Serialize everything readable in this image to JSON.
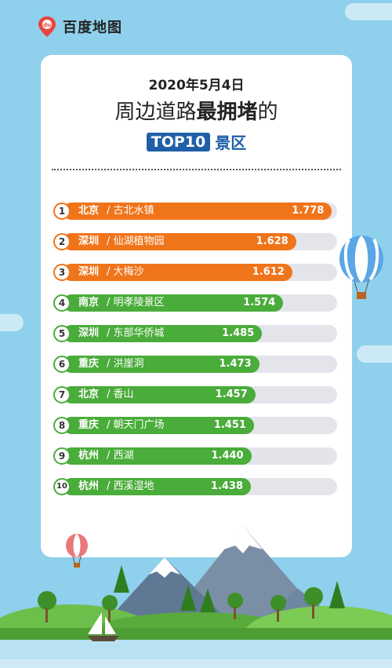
{
  "brand": {
    "name": "百度地图",
    "color": "#e8453c"
  },
  "title": {
    "date": "2020年5月4日",
    "line1_prefix": "周边道路",
    "line1_bold": "最拥堵",
    "line1_suffix": "的",
    "badge": "TOP10",
    "badge_suffix": "景区"
  },
  "colors": {
    "orange": "#f0741a",
    "green": "#4aac3a",
    "track": "#e3e5ea",
    "badge": "#1f5fa8"
  },
  "chart_data": {
    "type": "bar",
    "orientation": "horizontal",
    "categories": [
      "北京 / 古北水镇",
      "深圳 / 仙湖植物园",
      "深圳 / 大梅沙",
      "南京 / 明孝陵景区",
      "深圳 / 东部华侨城",
      "重庆 / 洪崖洞",
      "北京 / 香山",
      "重庆 / 朝天门广场",
      "杭州 / 西湖",
      "杭州 / 西溪湿地"
    ],
    "rows": [
      {
        "rank": "1",
        "city": "北京",
        "place": "古北水镇",
        "value": 1.778,
        "color": "orange"
      },
      {
        "rank": "2",
        "city": "深圳",
        "place": "仙湖植物园",
        "value": 1.628,
        "color": "orange"
      },
      {
        "rank": "3",
        "city": "深圳",
        "place": "大梅沙",
        "value": 1.612,
        "color": "orange"
      },
      {
        "rank": "4",
        "city": "南京",
        "place": "明孝陵景区",
        "value": 1.574,
        "color": "green"
      },
      {
        "rank": "5",
        "city": "深圳",
        "place": "东部华侨城",
        "value": 1.485,
        "color": "green"
      },
      {
        "rank": "6",
        "city": "重庆",
        "place": "洪崖洞",
        "value": 1.473,
        "color": "green"
      },
      {
        "rank": "7",
        "city": "北京",
        "place": "香山",
        "value": 1.457,
        "color": "green"
      },
      {
        "rank": "8",
        "city": "重庆",
        "place": "朝天门广场",
        "value": 1.451,
        "color": "green"
      },
      {
        "rank": "9",
        "city": "杭州",
        "place": "西湖",
        "value": 1.44,
        "color": "green"
      },
      {
        "rank": "10",
        "city": "杭州",
        "place": "西溪湿地",
        "value": 1.438,
        "color": "green"
      }
    ],
    "values": [
      1.778,
      1.628,
      1.612,
      1.574,
      1.485,
      1.473,
      1.457,
      1.451,
      1.44,
      1.438
    ],
    "value_format": "0.000",
    "grid": false,
    "legend": "none"
  }
}
